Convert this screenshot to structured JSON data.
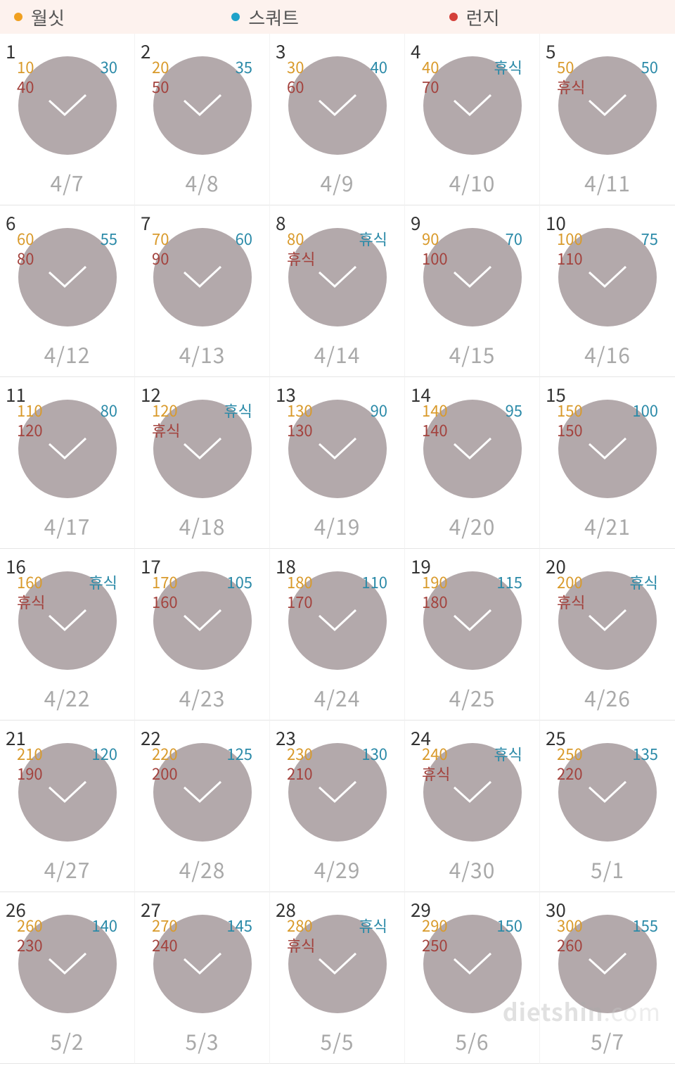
{
  "colors": {
    "wallsit": "#f0a020",
    "squat": "#1fa2c9",
    "lunge": "#d4403a",
    "circle": "#b3a9ab",
    "legend_bg": "#fdf2ee",
    "date_text": "#a9a9a9"
  },
  "legend": [
    {
      "key": "wallsit",
      "label": "월싯",
      "color": "#f0a020"
    },
    {
      "key": "squat",
      "label": "스쿼트",
      "color": "#1fa2c9"
    },
    {
      "key": "lunge",
      "label": "런지",
      "color": "#d4403a"
    }
  ],
  "watermark": {
    "text": "dietshin",
    "ext": ".com"
  },
  "days": [
    {
      "n": "1",
      "date": "4/7",
      "wallsit": "10",
      "squat": "30",
      "lunge": "40"
    },
    {
      "n": "2",
      "date": "4/8",
      "wallsit": "20",
      "squat": "35",
      "lunge": "50"
    },
    {
      "n": "3",
      "date": "4/9",
      "wallsit": "30",
      "squat": "40",
      "lunge": "60"
    },
    {
      "n": "4",
      "date": "4/10",
      "wallsit": "40",
      "squat": "휴식",
      "lunge": "70"
    },
    {
      "n": "5",
      "date": "4/11",
      "wallsit": "50",
      "squat": "50",
      "lunge": "휴식"
    },
    {
      "n": "6",
      "date": "4/12",
      "wallsit": "60",
      "squat": "55",
      "lunge": "80"
    },
    {
      "n": "7",
      "date": "4/13",
      "wallsit": "70",
      "squat": "60",
      "lunge": "90"
    },
    {
      "n": "8",
      "date": "4/14",
      "wallsit": "80",
      "squat": "휴식",
      "lunge": "휴식"
    },
    {
      "n": "9",
      "date": "4/15",
      "wallsit": "90",
      "squat": "70",
      "lunge": "100"
    },
    {
      "n": "10",
      "date": "4/16",
      "wallsit": "100",
      "squat": "75",
      "lunge": "110"
    },
    {
      "n": "11",
      "date": "4/17",
      "wallsit": "110",
      "squat": "80",
      "lunge": "120"
    },
    {
      "n": "12",
      "date": "4/18",
      "wallsit": "120",
      "squat": "휴식",
      "lunge": "휴식"
    },
    {
      "n": "13",
      "date": "4/19",
      "wallsit": "130",
      "squat": "90",
      "lunge": "130"
    },
    {
      "n": "14",
      "date": "4/20",
      "wallsit": "140",
      "squat": "95",
      "lunge": "140"
    },
    {
      "n": "15",
      "date": "4/21",
      "wallsit": "150",
      "squat": "100",
      "lunge": "150"
    },
    {
      "n": "16",
      "date": "4/22",
      "wallsit": "160",
      "squat": "휴식",
      "lunge": "휴식"
    },
    {
      "n": "17",
      "date": "4/23",
      "wallsit": "170",
      "squat": "105",
      "lunge": "160"
    },
    {
      "n": "18",
      "date": "4/24",
      "wallsit": "180",
      "squat": "110",
      "lunge": "170"
    },
    {
      "n": "19",
      "date": "4/25",
      "wallsit": "190",
      "squat": "115",
      "lunge": "180"
    },
    {
      "n": "20",
      "date": "4/26",
      "wallsit": "200",
      "squat": "휴식",
      "lunge": "휴식"
    },
    {
      "n": "21",
      "date": "4/27",
      "wallsit": "210",
      "squat": "120",
      "lunge": "190"
    },
    {
      "n": "22",
      "date": "4/28",
      "wallsit": "220",
      "squat": "125",
      "lunge": "200"
    },
    {
      "n": "23",
      "date": "4/29",
      "wallsit": "230",
      "squat": "130",
      "lunge": "210"
    },
    {
      "n": "24",
      "date": "4/30",
      "wallsit": "240",
      "squat": "휴식",
      "lunge": "휴식"
    },
    {
      "n": "25",
      "date": "5/1",
      "wallsit": "250",
      "squat": "135",
      "lunge": "220"
    },
    {
      "n": "26",
      "date": "5/2",
      "wallsit": "260",
      "squat": "140",
      "lunge": "230"
    },
    {
      "n": "27",
      "date": "5/3",
      "wallsit": "270",
      "squat": "145",
      "lunge": "240"
    },
    {
      "n": "28",
      "date": "5/5",
      "wallsit": "280",
      "squat": "휴식",
      "lunge": "휴식"
    },
    {
      "n": "29",
      "date": "5/6",
      "wallsit": "290",
      "squat": "150",
      "lunge": "250"
    },
    {
      "n": "30",
      "date": "5/7",
      "wallsit": "300",
      "squat": "155",
      "lunge": "260"
    }
  ]
}
